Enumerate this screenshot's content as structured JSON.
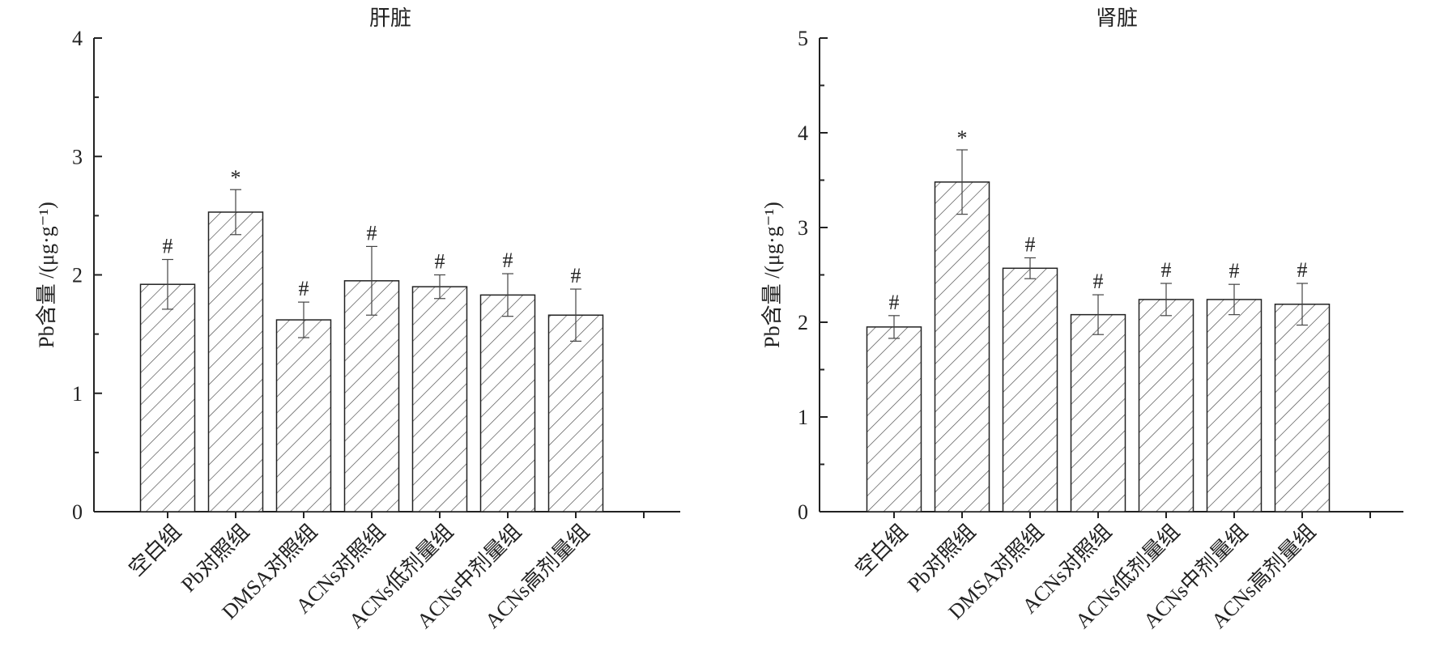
{
  "chart_data": [
    {
      "type": "bar",
      "title": "肝脏",
      "ylabel": "Pb含量 /(μg·g⁻¹)",
      "ylim": [
        0,
        4
      ],
      "yticks": [
        0,
        1,
        2,
        3,
        4
      ],
      "categories": [
        "空白组",
        "Pb对照组",
        "DMSA对照组",
        "ACNs对照组",
        "ACNs低剂量组",
        "ACNs中剂量组",
        "ACNs高剂量组"
      ],
      "values": [
        1.92,
        2.53,
        1.62,
        1.95,
        1.9,
        1.83,
        1.66
      ],
      "errors": [
        0.21,
        0.19,
        0.15,
        0.29,
        0.1,
        0.18,
        0.22
      ],
      "annotations": [
        "#",
        "*",
        "#",
        "#",
        "#",
        "#",
        "#"
      ],
      "pattern": "diagonal hatch"
    },
    {
      "type": "bar",
      "title": "肾脏",
      "ylabel": "Pb含量 /(μg·g⁻¹)",
      "ylim": [
        0,
        5
      ],
      "yticks": [
        0,
        1,
        2,
        3,
        4,
        5
      ],
      "categories": [
        "空白组",
        "Pb对照组",
        "DMSA对照组",
        "ACNs对照组",
        "ACNs低剂量组",
        "ACNs中剂量组",
        "ACNs高剂量组"
      ],
      "values": [
        1.95,
        3.48,
        2.57,
        2.08,
        2.24,
        2.24,
        2.19
      ],
      "errors": [
        0.12,
        0.34,
        0.11,
        0.21,
        0.17,
        0.16,
        0.22
      ],
      "annotations": [
        "#",
        "*",
        "#",
        "#",
        "#",
        "#",
        "#"
      ],
      "pattern": "diagonal hatch"
    }
  ],
  "colors": {
    "axis": "#222222",
    "bar_fill": "#ffffff",
    "hatch": "#444444"
  }
}
